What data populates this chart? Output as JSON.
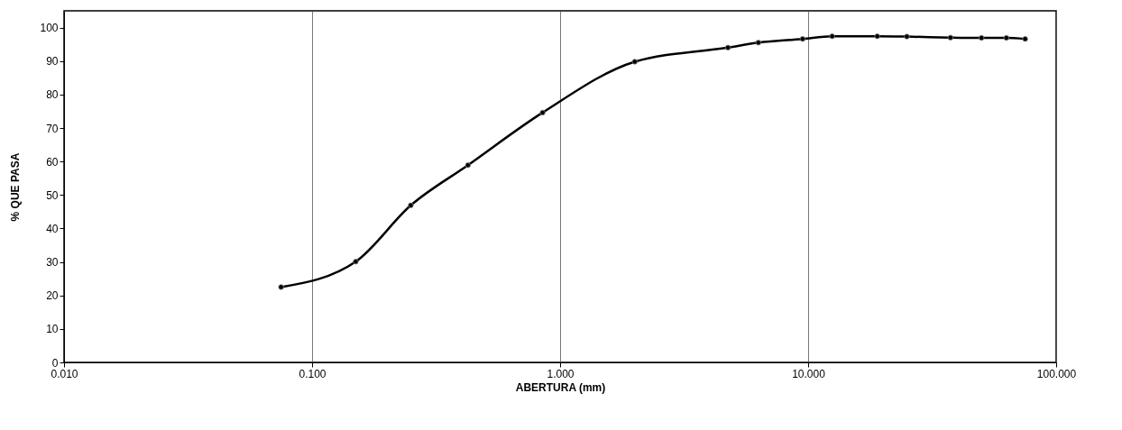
{
  "chart_data": {
    "type": "line",
    "xlabel": "ABERTURA (mm)",
    "ylabel": "% QUE PASA",
    "log": "x",
    "x": [
      0.075,
      0.15,
      0.25,
      0.425,
      0.85,
      2.0,
      4.75,
      6.3,
      9.5,
      12.5,
      19,
      25,
      37.5,
      50,
      63,
      75
    ],
    "series": [
      {
        "color": "#000000",
        "values": [
          22.5,
          30.1,
          46.9,
          58.9,
          74.6,
          89.8,
          94.0,
          95.5,
          96.6,
          97.4,
          97.4,
          97.3,
          97.0,
          96.9,
          96.9,
          96.6
        ]
      }
    ],
    "xlim": [
      0.01,
      100
    ],
    "xticks": [
      {
        "value": 0.01,
        "label": "0.010"
      },
      {
        "value": 0.1,
        "label": "0.100"
      },
      {
        "value": 1,
        "label": "1.000"
      },
      {
        "value": 10,
        "label": "10.000"
      },
      {
        "value": 100,
        "label": "100.000"
      }
    ],
    "ylim": [
      0,
      105
    ],
    "yticks": [
      0,
      10,
      20,
      30,
      40,
      50,
      60,
      70,
      80,
      90,
      100
    ],
    "grid": "x",
    "marker": "circle",
    "line_style": "solid"
  }
}
